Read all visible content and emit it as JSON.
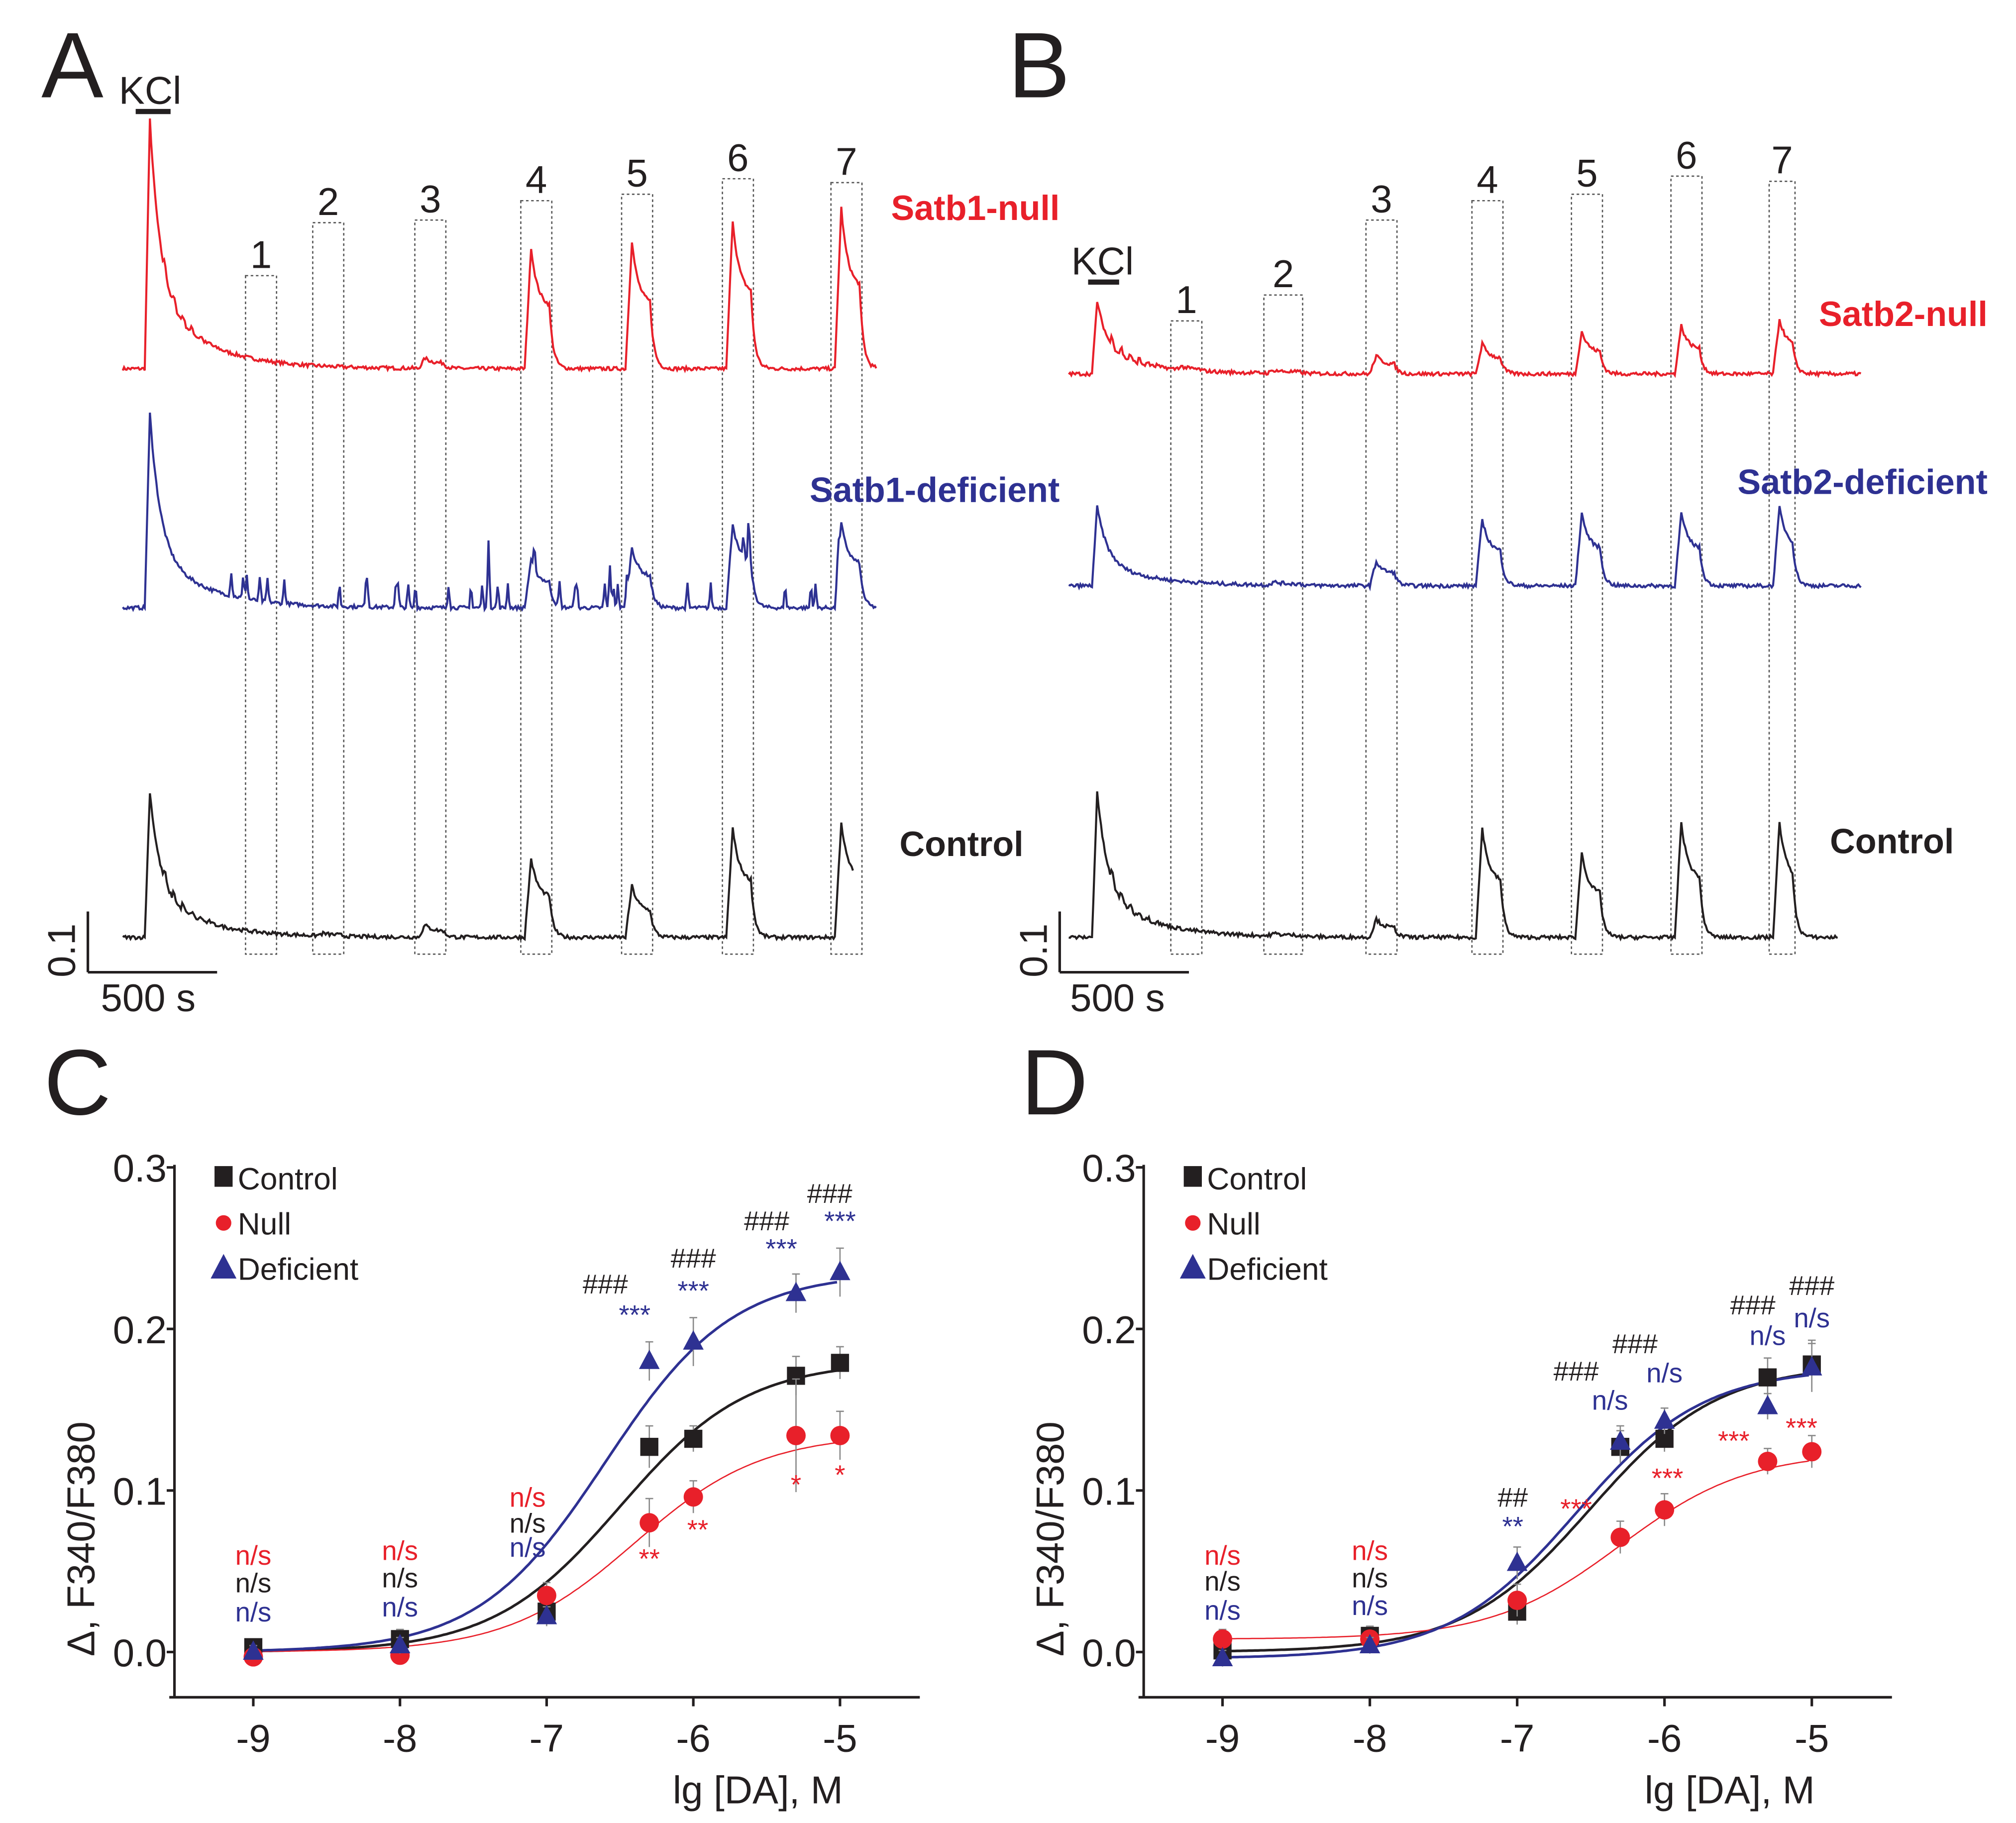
{
  "colors": {
    "null": "#e8202a",
    "deficient": "#2e3192",
    "control": "#231f20"
  },
  "panels": {
    "A": {
      "letter": "A",
      "kcl_label": "KCl",
      "scale_y": "0.1",
      "scale_x": "500 s",
      "window_labels": [
        "1",
        "2",
        "3",
        "4",
        "5",
        "6",
        "7"
      ],
      "traces": [
        {
          "label": "Satb1-null",
          "color": "null",
          "kcl": 0.41,
          "responses": [
            0,
            0,
            0.017,
            0.2,
            0.21,
            0.245,
            0.265
          ],
          "spikes": false
        },
        {
          "label": "Satb1-deficient",
          "color": "deficient",
          "kcl": 0.32,
          "responses": [
            0,
            0,
            0,
            0.08,
            0.1,
            0.14,
            0.14
          ],
          "spikes": true
        },
        {
          "label": "Control",
          "color": "control",
          "kcl": 0.24,
          "responses": [
            0,
            0.004,
            0.02,
            0.13,
            0.085,
            0.18,
            0.19
          ],
          "spikes": false
        }
      ]
    },
    "B": {
      "letter": "B",
      "kcl_label": "KCl",
      "scale_y": "0.1",
      "scale_x": "500 s",
      "window_labels": [
        "1",
        "2",
        "3",
        "4",
        "5",
        "6",
        "7"
      ],
      "traces": [
        {
          "label": "Satb2-null",
          "color": "null",
          "kcl": 0.12,
          "responses": [
            0.005,
            0.005,
            0.03,
            0.05,
            0.07,
            0.08,
            0.09
          ],
          "spikes": false
        },
        {
          "label": "Satb2-deficient",
          "color": "deficient",
          "kcl": 0.13,
          "responses": [
            0,
            0.005,
            0.04,
            0.11,
            0.12,
            0.12,
            0.13
          ],
          "spikes": false
        },
        {
          "label": "Control",
          "color": "control",
          "kcl": 0.24,
          "responses": [
            0,
            0.004,
            0.03,
            0.18,
            0.14,
            0.19,
            0.19
          ],
          "spikes": false
        }
      ]
    }
  },
  "chart_data": [
    {
      "panel": "C",
      "type": "scatter",
      "xlabel": "lg [DA], M",
      "ylabel": "Δ, F340/F380",
      "xlim": [
        -9.5,
        -4.5
      ],
      "ylim": [
        -0.027,
        0.3
      ],
      "xticks": [
        -9,
        -8,
        -7,
        -6,
        -5
      ],
      "xtick_labels": [
        "-9",
        "-8",
        "-7",
        "-6",
        "-5"
      ],
      "yticks": [
        0,
        0.1,
        0.2,
        0.3
      ],
      "ytick_labels": [
        "0.0",
        "0.1",
        "0.2",
        "0.3"
      ],
      "legend": [
        "Control",
        "Null",
        "Deficient"
      ],
      "legend_position": "top-left",
      "x": [
        -9,
        -8,
        -7,
        -6.3,
        -6,
        -5.3,
        -5
      ],
      "series": [
        {
          "name": "Control",
          "marker": "square",
          "color": "control",
          "values": [
            0.003,
            0.008,
            0.025,
            0.127,
            0.132,
            0.171,
            0.179
          ],
          "err": [
            0.005,
            0.006,
            0.008,
            0.013,
            0.008,
            0.012,
            0.01
          ],
          "fit": {
            "bottom": 0,
            "top": 0.18,
            "logEC50": -6.5,
            "hill": 1
          }
        },
        {
          "name": "Null",
          "marker": "circle",
          "color": "null",
          "values": [
            -0.003,
            -0.002,
            0.035,
            0.08,
            0.096,
            0.134,
            0.134
          ],
          "err": [
            0.005,
            0.005,
            0.008,
            0.015,
            0.01,
            0.035,
            0.015
          ],
          "fit": {
            "bottom": 0,
            "top": 0.135,
            "logEC50": -6.4,
            "hill": 1
          }
        },
        {
          "name": "Deficient",
          "marker": "triangle",
          "color": "deficient",
          "values": [
            0.0,
            0.004,
            0.022,
            0.18,
            0.192,
            0.222,
            0.235
          ],
          "err": [
            0.004,
            0.005,
            0.006,
            0.012,
            0.015,
            0.012,
            0.015
          ],
          "fit": {
            "bottom": 0,
            "top": 0.235,
            "logEC50": -6.6,
            "hill": 1
          }
        }
      ],
      "annotations": [
        {
          "x": -9,
          "y": 0.054,
          "text": "n/s",
          "color": "null"
        },
        {
          "x": -9,
          "y": 0.037,
          "text": "n/s",
          "color": "control"
        },
        {
          "x": -9,
          "y": 0.019,
          "text": "n/s",
          "color": "deficient"
        },
        {
          "x": -8,
          "y": 0.057,
          "text": "n/s",
          "color": "null"
        },
        {
          "x": -8,
          "y": 0.04,
          "text": "n/s",
          "color": "control"
        },
        {
          "x": -8,
          "y": 0.022,
          "text": "n/s",
          "color": "deficient"
        },
        {
          "x": -7.13,
          "y": 0.09,
          "text": "n/s",
          "color": "null"
        },
        {
          "x": -7.13,
          "y": 0.074,
          "text": "n/s",
          "color": "control"
        },
        {
          "x": -7.13,
          "y": 0.059,
          "text": "n/s",
          "color": "deficient"
        },
        {
          "x": -6.6,
          "y": 0.222,
          "text": "###",
          "color": "control"
        },
        {
          "x": -6.4,
          "y": 0.203,
          "text": "***",
          "color": "deficient"
        },
        {
          "x": -6.3,
          "y": 0.052,
          "text": "**",
          "color": "null"
        },
        {
          "x": -6.0,
          "y": 0.238,
          "text": "###",
          "color": "control"
        },
        {
          "x": -6.0,
          "y": 0.218,
          "text": "***",
          "color": "deficient"
        },
        {
          "x": -5.97,
          "y": 0.07,
          "text": "**",
          "color": "null"
        },
        {
          "x": -5.5,
          "y": 0.261,
          "text": "###",
          "color": "control"
        },
        {
          "x": -5.4,
          "y": 0.244,
          "text": "***",
          "color": "deficient"
        },
        {
          "x": -5.3,
          "y": 0.098,
          "text": "*",
          "color": "null"
        },
        {
          "x": -5.07,
          "y": 0.278,
          "text": "###",
          "color": "control"
        },
        {
          "x": -5.0,
          "y": 0.261,
          "text": "***",
          "color": "deficient"
        },
        {
          "x": -5.0,
          "y": 0.104,
          "text": "*",
          "color": "null"
        }
      ]
    },
    {
      "panel": "D",
      "type": "scatter",
      "xlabel": "lg [DA], M",
      "ylabel": "Δ, F340/F380",
      "xlim": [
        -9.5,
        -4.5
      ],
      "ylim": [
        -0.027,
        0.3
      ],
      "xticks": [
        -9,
        -8,
        -7,
        -6,
        -5
      ],
      "xtick_labels": [
        "-9",
        "-8",
        "-7",
        "-6",
        "-5"
      ],
      "yticks": [
        0,
        0.1,
        0.2,
        0.3
      ],
      "ytick_labels": [
        "0.0",
        "0.1",
        "0.2",
        "0.3"
      ],
      "legend": [
        "Control",
        "Null",
        "Deficient"
      ],
      "legend_position": "top-left",
      "x": [
        -9,
        -8,
        -7,
        -6.3,
        -6,
        -5.3,
        -5
      ],
      "series": [
        {
          "name": "Control",
          "marker": "square",
          "color": "control",
          "values": [
            0.001,
            0.01,
            0.025,
            0.127,
            0.132,
            0.17,
            0.178
          ],
          "err": [
            0.005,
            0.006,
            0.008,
            0.01,
            0.008,
            0.012,
            0.015
          ],
          "fit": {
            "bottom": 0,
            "top": 0.178,
            "logEC50": -6.5,
            "hill": 1
          }
        },
        {
          "name": "Null",
          "marker": "circle",
          "color": "null",
          "values": [
            0.008,
            0.008,
            0.032,
            0.071,
            0.088,
            0.118,
            0.124
          ],
          "err": [
            0.006,
            0.005,
            0.01,
            0.01,
            0.01,
            0.008,
            0.01
          ],
          "fit": {
            "bottom": 0.008,
            "top": 0.124,
            "logEC50": -6.3,
            "hill": 1
          }
        },
        {
          "name": "Deficient",
          "marker": "triangle",
          "color": "deficient",
          "values": [
            -0.004,
            0.004,
            0.055,
            0.13,
            0.143,
            0.152,
            0.176
          ],
          "err": [
            0.005,
            0.005,
            0.01,
            0.01,
            0.008,
            0.008,
            0.015
          ],
          "fit": {
            "bottom": -0.004,
            "top": 0.176,
            "logEC50": -6.6,
            "hill": 1
          }
        }
      ],
      "annotations": [
        {
          "x": -9,
          "y": 0.054,
          "text": "n/s",
          "color": "null"
        },
        {
          "x": -9,
          "y": 0.038,
          "text": "n/s",
          "color": "control"
        },
        {
          "x": -9,
          "y": 0.02,
          "text": "n/s",
          "color": "deficient"
        },
        {
          "x": -8,
          "y": 0.057,
          "text": "n/s",
          "color": "null"
        },
        {
          "x": -8,
          "y": 0.04,
          "text": "n/s",
          "color": "control"
        },
        {
          "x": -8,
          "y": 0.023,
          "text": "n/s",
          "color": "deficient"
        },
        {
          "x": -7.03,
          "y": 0.09,
          "text": "##",
          "color": "control"
        },
        {
          "x": -7.03,
          "y": 0.072,
          "text": "**",
          "color": "deficient"
        },
        {
          "x": -6.6,
          "y": 0.168,
          "text": "###",
          "color": "control"
        },
        {
          "x": -6.37,
          "y": 0.15,
          "text": "n/s",
          "color": "deficient"
        },
        {
          "x": -6.6,
          "y": 0.083,
          "text": "***",
          "color": "null"
        },
        {
          "x": -6.2,
          "y": 0.185,
          "text": "###",
          "color": "control"
        },
        {
          "x": -6.0,
          "y": 0.167,
          "text": "n/s",
          "color": "deficient"
        },
        {
          "x": -5.98,
          "y": 0.102,
          "text": "***",
          "color": "null"
        },
        {
          "x": -5.4,
          "y": 0.209,
          "text": "###",
          "color": "control"
        },
        {
          "x": -5.3,
          "y": 0.19,
          "text": "n/s",
          "color": "deficient"
        },
        {
          "x": -5.53,
          "y": 0.125,
          "text": "***",
          "color": "null"
        },
        {
          "x": -5.0,
          "y": 0.221,
          "text": "###",
          "color": "control"
        },
        {
          "x": -5.0,
          "y": 0.201,
          "text": "n/s",
          "color": "deficient"
        },
        {
          "x": -5.07,
          "y": 0.133,
          "text": "***",
          "color": "null"
        }
      ]
    }
  ]
}
